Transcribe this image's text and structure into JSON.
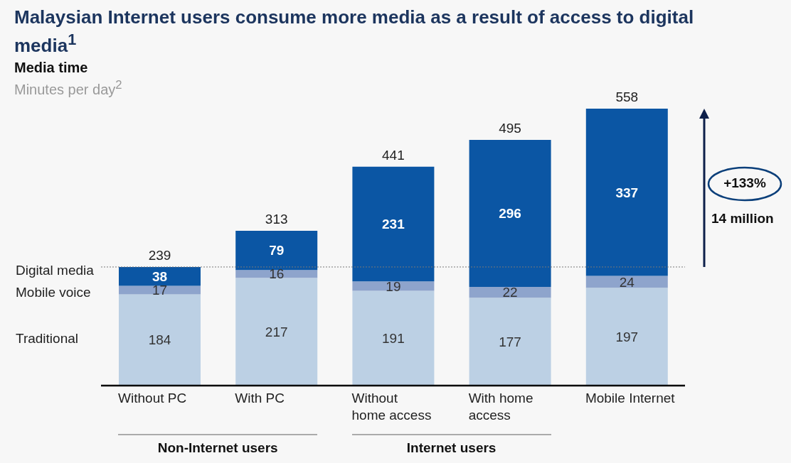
{
  "chart_data": {
    "type": "bar",
    "title": "Malaysian Internet users consume more media as a result of access to digital media$^{1}$",
    "subtitle": "Media time",
    "ylabel": "Minutes per day$^{2}$",
    "categories": [
      "Without PC",
      "With PC",
      "Without home access",
      "With home access",
      "Mobile Internet"
    ],
    "stacked": true,
    "data_labels": true,
    "legend": "left",
    "series": [
      {
        "name": "Traditional",
        "color": "#bcd0e4",
        "values": [
          184,
          217,
          191,
          177,
          197
        ]
      },
      {
        "name": "Mobile voice",
        "color": "#8ea4cc",
        "values": [
          17,
          16,
          19,
          22,
          24
        ]
      },
      {
        "name": "Digital media",
        "color": "#0b56a4",
        "values": [
          38,
          79,
          231,
          296,
          337
        ]
      }
    ],
    "totals": [
      "239",
      "313",
      "441",
      "495",
      "558"
    ],
    "ref_lines": [
      {
        "axis": "y",
        "value": 239,
        "line_style": "dotted",
        "color": "#777777"
      }
    ],
    "annotations": [
      "+133%",
      "14 million",
      "Non-Internet users",
      "Internet users"
    ]
  }
}
